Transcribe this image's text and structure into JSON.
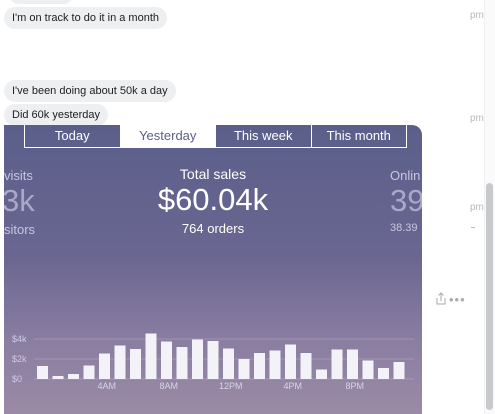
{
  "messages": [
    {
      "text": "I'm on track to do it in a month"
    },
    {
      "text": "I've been doing about 50k a day"
    },
    {
      "text": "Did 60k yesterday"
    }
  ],
  "timestamps": [
    "pm",
    "pm",
    "pm"
  ],
  "card": {
    "tabs": [
      {
        "label": "Today",
        "active": false
      },
      {
        "label": "Yesterday",
        "active": true
      },
      {
        "label": "This week",
        "active": false
      },
      {
        "label": "This month",
        "active": false
      }
    ],
    "left_metric": {
      "label": "visits",
      "value": "3k",
      "sublabel": "sitors"
    },
    "center_metric": {
      "label": "Total sales",
      "value": "$60.04k",
      "sublabel": "764 orders"
    },
    "right_metric": {
      "label": "Onlin",
      "value": "39",
      "sublabel": "38.39"
    }
  },
  "colors": {
    "card_top": "#5a5f8a",
    "card_bottom": "#9a8aa6",
    "bar": "#f3f2f8",
    "bubble": "#eeeff1"
  },
  "icons": {
    "share": "share-icon",
    "more": "more-options-icon"
  },
  "chart_data": {
    "type": "bar",
    "ylim": [
      0,
      5000
    ],
    "y_ticks": [
      {
        "value": 0,
        "label": "$0"
      },
      {
        "value": 2000,
        "label": "$2k"
      },
      {
        "value": 4000,
        "label": "$4k"
      }
    ],
    "x_ticks": [
      {
        "index": 4.5,
        "label": "4AM"
      },
      {
        "index": 8.5,
        "label": "8AM"
      },
      {
        "index": 12.5,
        "label": "12PM"
      },
      {
        "index": 16.5,
        "label": "4PM"
      },
      {
        "index": 20.5,
        "label": "8PM"
      }
    ],
    "categories": [
      "0",
      "1",
      "2",
      "3",
      "4",
      "5",
      "6",
      "7",
      "8",
      "9",
      "10",
      "11",
      "12",
      "13",
      "14",
      "15",
      "16",
      "17",
      "18",
      "19",
      "20",
      "21",
      "22",
      "23"
    ],
    "values": [
      1300,
      300,
      500,
      1350,
      2550,
      3350,
      3000,
      4550,
      3750,
      3200,
      3950,
      3800,
      3050,
      2000,
      2600,
      2850,
      3450,
      2600,
      950,
      2950,
      2950,
      1850,
      1100,
      1700
    ]
  }
}
